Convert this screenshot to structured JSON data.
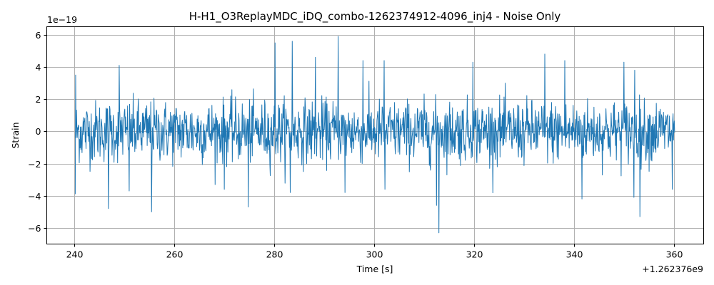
{
  "chart_data": {
    "type": "line",
    "title": "H-H1_O3ReplayMDC_iDQ_combo-1262374912-4096_inj4 - Noise Only",
    "xlabel": "Time [s]",
    "ylabel": "Strain",
    "x_offset_label": "+1.262376e9",
    "y_scale_label": "1e−19",
    "xlim": [
      234.5,
      366.0
    ],
    "ylim": [
      -7.0,
      6.5
    ],
    "x_ticks": [
      240,
      260,
      280,
      300,
      320,
      340,
      360
    ],
    "x_tick_labels": [
      "240",
      "260",
      "280",
      "300",
      "320",
      "340",
      "360"
    ],
    "y_ticks": [
      -6,
      -4,
      -2,
      0,
      2,
      4,
      6
    ],
    "y_tick_labels": [
      "−6",
      "−4",
      "−2",
      "0",
      "2",
      "4",
      "6"
    ],
    "grid": true,
    "line_color": "#1f77b4",
    "series": [
      {
        "x_start": 240.2,
        "x_end": 360.2,
        "sample_interval": 0.08,
        "envelope": {
          "upper_typical": 2.3,
          "lower_typical": -2.3,
          "noise_sigma": 0.95
        },
        "peaks": [
          {
            "x": 240.3,
            "y": 3.5
          },
          {
            "x": 249.0,
            "y": 4.1
          },
          {
            "x": 280.2,
            "y": 5.5
          },
          {
            "x": 283.6,
            "y": 5.6
          },
          {
            "x": 288.3,
            "y": 4.6
          },
          {
            "x": 292.8,
            "y": 5.9
          },
          {
            "x": 297.8,
            "y": 4.4
          },
          {
            "x": 302.0,
            "y": 4.4
          },
          {
            "x": 319.8,
            "y": 4.3
          },
          {
            "x": 334.2,
            "y": 4.8
          },
          {
            "x": 338.2,
            "y": 4.4
          },
          {
            "x": 350.0,
            "y": 4.3
          },
          {
            "x": 352.2,
            "y": 3.8
          }
        ],
        "troughs": [
          {
            "x": 240.2,
            "y": -3.9
          },
          {
            "x": 246.8,
            "y": -4.8
          },
          {
            "x": 251.0,
            "y": -3.7
          },
          {
            "x": 255.5,
            "y": -5.0
          },
          {
            "x": 270.0,
            "y": -3.6
          },
          {
            "x": 274.8,
            "y": -4.7
          },
          {
            "x": 283.2,
            "y": -3.8
          },
          {
            "x": 294.2,
            "y": -3.8
          },
          {
            "x": 302.2,
            "y": -3.6
          },
          {
            "x": 312.5,
            "y": -4.6
          },
          {
            "x": 313.0,
            "y": -6.3
          },
          {
            "x": 341.6,
            "y": -4.2
          },
          {
            "x": 352.0,
            "y": -4.1
          },
          {
            "x": 353.2,
            "y": -5.3
          },
          {
            "x": 359.7,
            "y": -3.6
          }
        ]
      }
    ]
  }
}
